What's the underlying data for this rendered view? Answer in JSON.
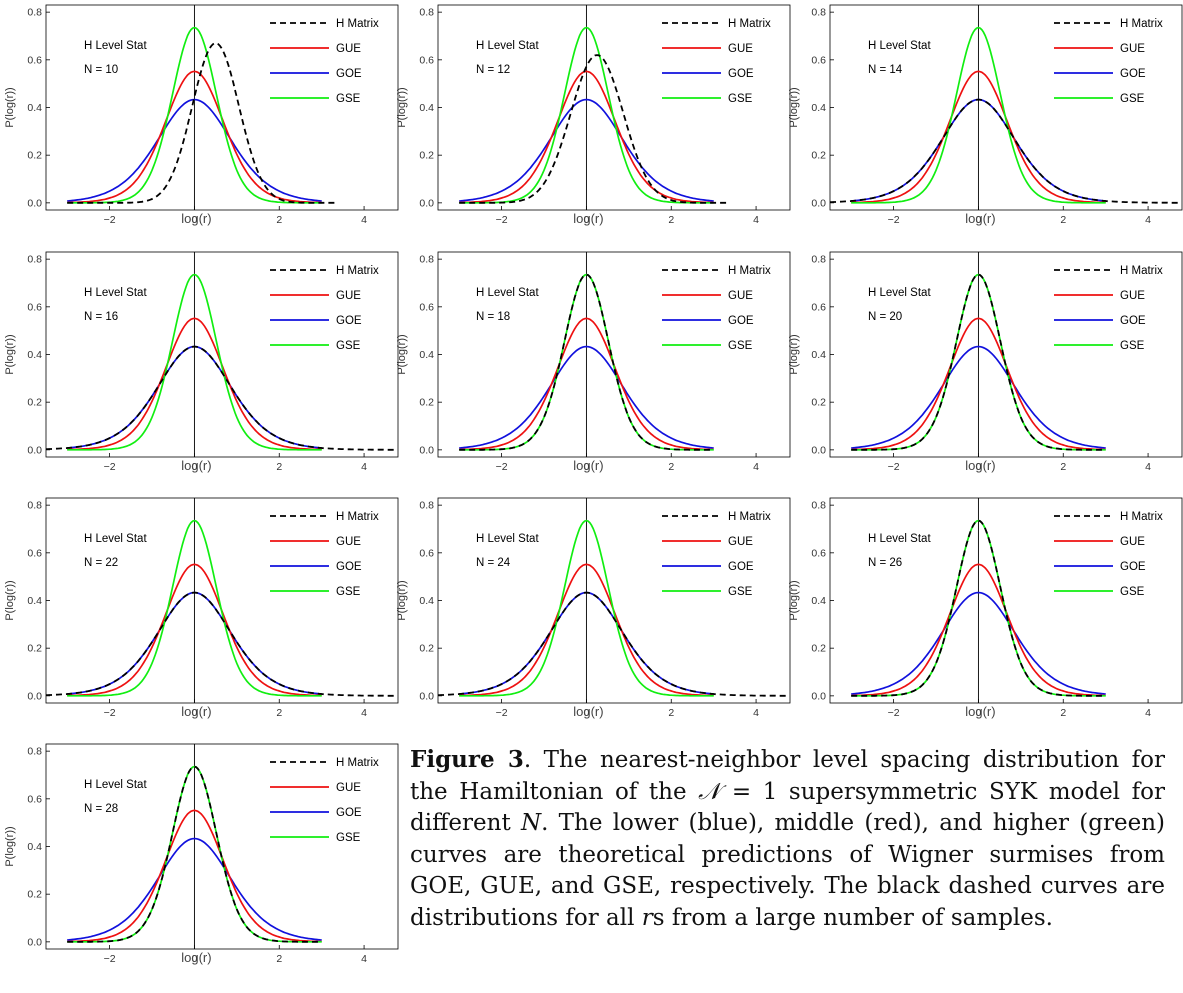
{
  "chart_data": {
    "type": "line",
    "panel_count": 10,
    "xlabel": "log(r)",
    "ylabel": "P(log(r))",
    "xlim": [
      -3.5,
      4.8
    ],
    "ylim": [
      -0.03,
      0.83
    ],
    "xticks": [
      -2,
      0,
      2,
      4
    ],
    "xtick_labels": [
      "−2",
      "0",
      "2",
      "4"
    ],
    "yticks": [
      0.0,
      0.2,
      0.4,
      0.6,
      0.8
    ],
    "ytick_labels": [
      "0.0",
      "0.2",
      "0.4",
      "0.6",
      "0.8"
    ],
    "legend_position": "top-right",
    "annotation_label": "H Level Stat",
    "series_names": [
      "H Matrix",
      "GUE",
      "GOE",
      "GSE"
    ],
    "colors": {
      "H Matrix": "#000000",
      "GUE": "#ee1111",
      "GOE": "#1111dd",
      "GSE": "#11ee11"
    },
    "panels": [
      {
        "n_label": "N = 10",
        "h_matrix_match": "shifted",
        "h_matrix_peak_x": 0.5,
        "h_matrix_peak_y": 0.67
      },
      {
        "n_label": "N = 12",
        "h_matrix_match": "shifted",
        "h_matrix_peak_x": 0.25,
        "h_matrix_peak_y": 0.62
      },
      {
        "n_label": "N = 14",
        "h_matrix_match": "GOE"
      },
      {
        "n_label": "N = 16",
        "h_matrix_match": "GOE"
      },
      {
        "n_label": "N = 18",
        "h_matrix_match": "GSE"
      },
      {
        "n_label": "N = 20",
        "h_matrix_match": "GSE"
      },
      {
        "n_label": "N = 22",
        "h_matrix_match": "GOE"
      },
      {
        "n_label": "N = 24",
        "h_matrix_match": "GOE"
      },
      {
        "n_label": "N = 26",
        "h_matrix_match": "GSE"
      },
      {
        "n_label": "N = 28",
        "h_matrix_match": "GSE"
      }
    ],
    "theory_peaks": {
      "GOE": 0.43,
      "GUE": 0.55,
      "GSE": 0.735
    }
  },
  "caption": {
    "label": "Figure 3",
    "parts": [
      ". The nearest-neighbor level spacing distribution for the Hamiltonian of the ",
      "𝒩",
      " = 1 supersymmetric SYK model for different ",
      "N",
      ". The lower (blue), middle (red), and higher (green) curves are theoretical predictions of Wigner surmises from GOE, GUE, and GSE, respectively. The black dashed curves are distributions for all ",
      "r",
      "s from a large number of samples."
    ]
  }
}
